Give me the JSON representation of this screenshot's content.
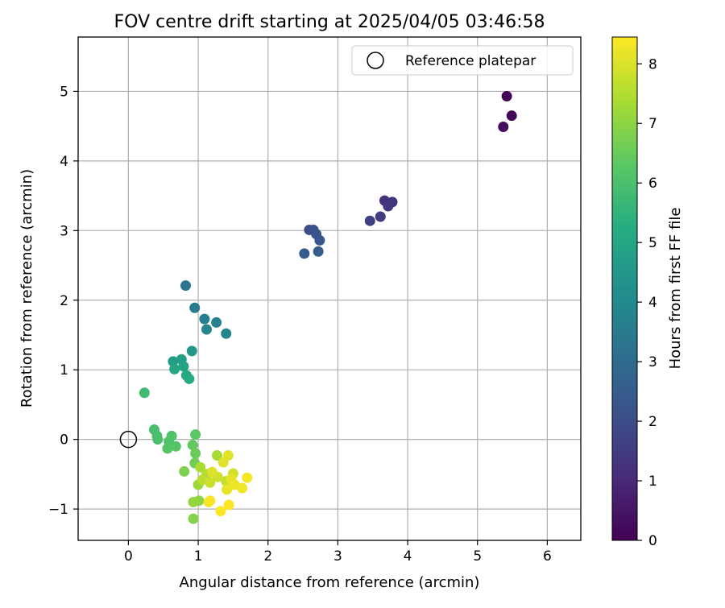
{
  "chart_data": {
    "type": "scatter",
    "title": "FOV centre drift starting at 2025/04/05 03:46:58",
    "xlabel": "Angular distance from reference (arcmin)",
    "ylabel": "Rotation from reference (arcmin)",
    "xlim": [
      -0.72,
      6.48
    ],
    "ylim": [
      -1.45,
      5.78
    ],
    "xticks": [
      0,
      1,
      2,
      3,
      4,
      5,
      6
    ],
    "yticks": [
      -1,
      0,
      1,
      2,
      3,
      4,
      5
    ],
    "grid": true,
    "legend": {
      "placement": "top-right",
      "entries": [
        "Reference platepar"
      ]
    },
    "reference_point": {
      "x": 0,
      "y": 0
    },
    "colorbar": {
      "label": "Hours from first FF file",
      "colormap": "viridis",
      "range": [
        0,
        8.45
      ],
      "ticks": [
        0,
        1,
        2,
        3,
        4,
        5,
        6,
        7,
        8
      ]
    },
    "points": [
      {
        "x": 5.42,
        "y": 4.93,
        "h": 0.05
      },
      {
        "x": 5.49,
        "y": 4.65,
        "h": 0.15
      },
      {
        "x": 5.37,
        "y": 4.49,
        "h": 0.25
      },
      {
        "x": 3.67,
        "y": 3.43,
        "h": 1.2
      },
      {
        "x": 3.78,
        "y": 3.41,
        "h": 1.3
      },
      {
        "x": 3.72,
        "y": 3.35,
        "h": 1.4
      },
      {
        "x": 3.61,
        "y": 3.2,
        "h": 1.5
      },
      {
        "x": 3.46,
        "y": 3.14,
        "h": 1.6
      },
      {
        "x": 2.59,
        "y": 3.01,
        "h": 2.0
      },
      {
        "x": 2.65,
        "y": 3.01,
        "h": 2.1
      },
      {
        "x": 2.69,
        "y": 2.95,
        "h": 2.2
      },
      {
        "x": 2.74,
        "y": 2.86,
        "h": 2.3
      },
      {
        "x": 2.52,
        "y": 2.67,
        "h": 2.4
      },
      {
        "x": 2.72,
        "y": 2.7,
        "h": 2.5
      },
      {
        "x": 0.82,
        "y": 2.21,
        "h": 3.3
      },
      {
        "x": 0.95,
        "y": 1.89,
        "h": 3.5
      },
      {
        "x": 1.09,
        "y": 1.73,
        "h": 3.6
      },
      {
        "x": 1.26,
        "y": 1.68,
        "h": 3.7
      },
      {
        "x": 1.12,
        "y": 1.58,
        "h": 3.8
      },
      {
        "x": 1.4,
        "y": 1.52,
        "h": 3.9
      },
      {
        "x": 0.91,
        "y": 1.27,
        "h": 4.6
      },
      {
        "x": 0.64,
        "y": 1.12,
        "h": 4.7
      },
      {
        "x": 0.76,
        "y": 1.15,
        "h": 4.8
      },
      {
        "x": 0.79,
        "y": 1.05,
        "h": 4.9
      },
      {
        "x": 0.66,
        "y": 1.01,
        "h": 5.0
      },
      {
        "x": 0.83,
        "y": 0.92,
        "h": 5.1
      },
      {
        "x": 0.87,
        "y": 0.87,
        "h": 5.2
      },
      {
        "x": 0.23,
        "y": 0.67,
        "h": 5.8
      },
      {
        "x": 0.37,
        "y": 0.14,
        "h": 5.9
      },
      {
        "x": 0.41,
        "y": 0.05,
        "h": 6.0
      },
      {
        "x": 0.42,
        "y": 0.0,
        "h": 6.0
      },
      {
        "x": 0.62,
        "y": 0.05,
        "h": 6.1
      },
      {
        "x": 0.58,
        "y": -0.03,
        "h": 6.1
      },
      {
        "x": 0.68,
        "y": -0.1,
        "h": 6.2
      },
      {
        "x": 0.56,
        "y": -0.13,
        "h": 6.2
      },
      {
        "x": 0.96,
        "y": 0.07,
        "h": 6.3
      },
      {
        "x": 0.92,
        "y": -0.08,
        "h": 6.4
      },
      {
        "x": 0.96,
        "y": -0.2,
        "h": 6.5
      },
      {
        "x": 0.95,
        "y": -0.34,
        "h": 6.6
      },
      {
        "x": 0.8,
        "y": -0.46,
        "h": 6.8
      },
      {
        "x": 0.93,
        "y": -1.14,
        "h": 6.9
      },
      {
        "x": 1.01,
        "y": -0.88,
        "h": 7.0
      },
      {
        "x": 0.93,
        "y": -0.9,
        "h": 7.1
      },
      {
        "x": 1.0,
        "y": -0.65,
        "h": 7.2
      },
      {
        "x": 1.27,
        "y": -0.23,
        "h": 7.3
      },
      {
        "x": 1.03,
        "y": -0.4,
        "h": 7.4
      },
      {
        "x": 1.12,
        "y": -0.5,
        "h": 7.5
      },
      {
        "x": 1.06,
        "y": -0.58,
        "h": 7.6
      },
      {
        "x": 1.4,
        "y": -0.6,
        "h": 7.7
      },
      {
        "x": 1.17,
        "y": -0.62,
        "h": 7.8
      },
      {
        "x": 1.28,
        "y": -0.54,
        "h": 7.85
      },
      {
        "x": 1.5,
        "y": -0.49,
        "h": 7.9
      },
      {
        "x": 1.2,
        "y": -0.47,
        "h": 8.0
      },
      {
        "x": 1.36,
        "y": -0.33,
        "h": 8.05
      },
      {
        "x": 1.43,
        "y": -0.23,
        "h": 8.1
      },
      {
        "x": 1.47,
        "y": -0.57,
        "h": 8.15
      },
      {
        "x": 1.41,
        "y": -0.72,
        "h": 8.2
      },
      {
        "x": 1.52,
        "y": -0.65,
        "h": 8.25
      },
      {
        "x": 1.63,
        "y": -0.7,
        "h": 8.3
      },
      {
        "x": 1.7,
        "y": -0.55,
        "h": 8.35
      },
      {
        "x": 1.15,
        "y": -0.9,
        "h": 8.38
      },
      {
        "x": 1.17,
        "y": -0.88,
        "h": 8.4
      },
      {
        "x": 1.44,
        "y": -0.94,
        "h": 8.42
      },
      {
        "x": 1.32,
        "y": -1.03,
        "h": 8.44
      }
    ]
  }
}
